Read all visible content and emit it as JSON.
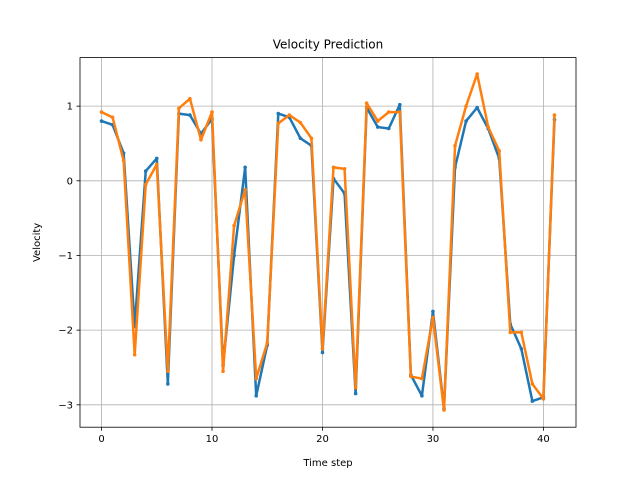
{
  "chart_data": {
    "type": "line",
    "title": "Velocity Prediction",
    "xlabel": "Time step",
    "ylabel": "Velocity",
    "xlim": [
      -1.95,
      42.95
    ],
    "ylim": [
      -3.3,
      1.65
    ],
    "xticks": [
      0,
      10,
      20,
      30,
      40
    ],
    "yticks": [
      -3,
      -2,
      -1,
      0,
      1
    ],
    "ytick_labels": [
      "−3",
      "−2",
      "−1",
      "0",
      "1"
    ],
    "grid": true,
    "legend": false,
    "series": [
      {
        "color": "#1f77b4",
        "x": [
          0,
          1,
          2,
          3,
          4,
          5,
          6,
          7,
          8,
          9,
          10,
          11,
          12,
          13,
          14,
          15,
          16,
          17,
          18,
          19,
          20,
          21,
          22,
          23,
          24,
          25,
          26,
          27,
          28,
          29,
          30,
          31,
          32,
          33,
          34,
          35,
          36,
          37,
          38,
          39,
          40,
          41
        ],
        "y": [
          0.8,
          0.75,
          0.37,
          -1.95,
          0.13,
          0.3,
          -2.72,
          0.9,
          0.88,
          0.63,
          0.83,
          -2.47,
          -1.0,
          0.18,
          -2.88,
          -2.2,
          0.9,
          0.85,
          0.57,
          0.47,
          -2.3,
          0.03,
          -0.17,
          -2.85,
          0.98,
          0.72,
          0.7,
          1.02,
          -2.6,
          -2.88,
          -1.75,
          -3.05,
          0.18,
          0.8,
          0.98,
          0.7,
          0.3,
          -1.92,
          -2.25,
          -2.95,
          -2.9,
          0.82
        ]
      },
      {
        "color": "#ff7f0e",
        "x": [
          0,
          1,
          2,
          3,
          4,
          5,
          6,
          7,
          8,
          9,
          10,
          11,
          12,
          13,
          14,
          15,
          16,
          17,
          18,
          19,
          20,
          21,
          22,
          23,
          24,
          25,
          26,
          27,
          28,
          29,
          30,
          31,
          32,
          33,
          34,
          35,
          36,
          37,
          38,
          39,
          40,
          41
        ],
        "y": [
          0.92,
          0.85,
          0.27,
          -2.33,
          -0.05,
          0.22,
          -2.55,
          0.97,
          1.1,
          0.55,
          0.92,
          -2.55,
          -0.6,
          -0.12,
          -2.65,
          -2.17,
          0.77,
          0.88,
          0.78,
          0.57,
          -2.25,
          0.18,
          0.16,
          -2.77,
          1.04,
          0.8,
          0.92,
          0.92,
          -2.62,
          -2.65,
          -1.83,
          -3.07,
          0.47,
          1.0,
          1.43,
          0.72,
          0.4,
          -2.03,
          -2.03,
          -2.72,
          -2.92,
          0.88
        ]
      }
    ]
  }
}
